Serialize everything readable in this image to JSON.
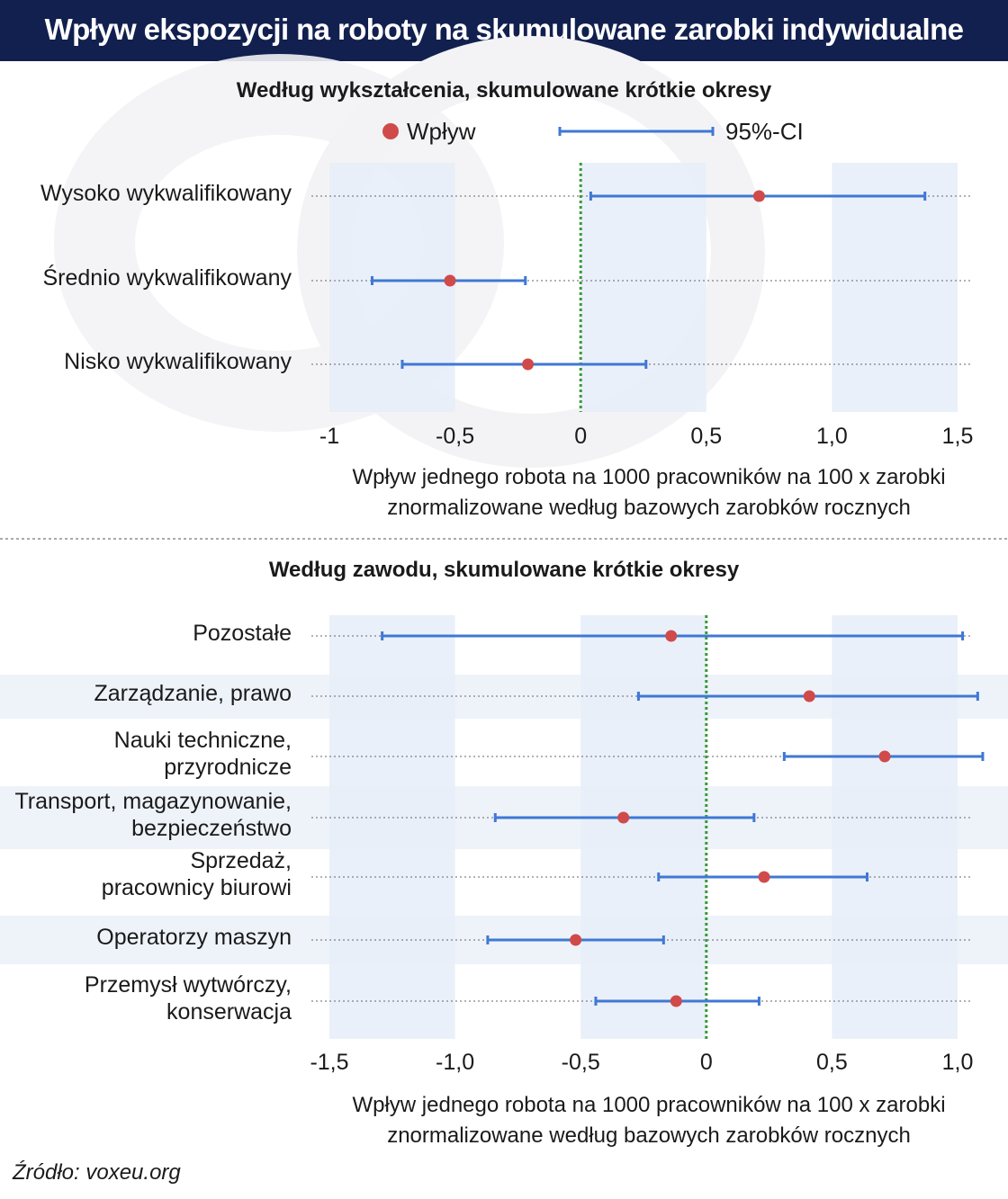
{
  "title": "Wpływ ekspozycji na roboty na skumulowane zarobki indywidualne",
  "source": "Źródło: voxeu.org",
  "colors": {
    "header": "#12204f",
    "point": "#d04a4a",
    "ci": "#3f78d4",
    "zero_line": "#3a9a3a",
    "band": "#e6edf8",
    "row_alt": "#eef3fa"
  },
  "legend": {
    "point_label": "Wpływ",
    "ci_label": "95%-CI"
  },
  "chart_data": [
    {
      "type": "scatter",
      "title": "Według wykształcenia, skumulowane krótkie okresy",
      "xlabel": [
        "Wpływ jednego robota na 1000 pracowników na 100 x zarobki",
        "znormalizowane według bazowych zarobków rocznych"
      ],
      "xlim": [
        -1,
        1.5
      ],
      "tick_values": [
        -1,
        -0.5,
        0,
        0.5,
        1.0,
        1.5
      ],
      "tick_labels": [
        "-1",
        "-0,5",
        "0",
        "0,5",
        "1,0",
        "1,5"
      ],
      "bands": [
        [
          -1,
          -0.5
        ],
        [
          0,
          0.5
        ],
        [
          1.0,
          1.5
        ]
      ],
      "reference_line": 0,
      "categories": [
        {
          "label": [
            "Wysoko wykwalifikowany"
          ],
          "value": 0.71,
          "ci_low": 0.04,
          "ci_high": 1.37
        },
        {
          "label": [
            "Średnio wykwalifikowany"
          ],
          "value": -0.52,
          "ci_low": -0.83,
          "ci_high": -0.22
        },
        {
          "label": [
            "Nisko wykwalifikowany"
          ],
          "value": -0.21,
          "ci_low": -0.71,
          "ci_high": 0.26
        }
      ]
    },
    {
      "type": "scatter",
      "title": "Według zawodu, skumulowane krótkie okresy",
      "xlabel": [
        "Wpływ jednego robota na 1000 pracowników na 100 x zarobki",
        "znormalizowane według bazowych zarobków rocznych"
      ],
      "xlim": [
        -1.5,
        1.0
      ],
      "tick_values": [
        -1.5,
        -1.0,
        -0.5,
        0,
        0.5,
        1.0
      ],
      "tick_labels": [
        "-1,5",
        "-1,0",
        "-0,5",
        "0",
        "0,5",
        "1,0"
      ],
      "bands": [
        [
          -1.5,
          -1.0
        ],
        [
          -0.5,
          0
        ],
        [
          0.5,
          1.0
        ]
      ],
      "reference_line": 0,
      "categories": [
        {
          "label": [
            "Pozostałe"
          ],
          "value": -0.14,
          "ci_low": -1.29,
          "ci_high": 1.02
        },
        {
          "label": [
            "Zarządzanie, prawo"
          ],
          "value": 0.41,
          "ci_low": -0.27,
          "ci_high": 1.08
        },
        {
          "label": [
            "Nauki techniczne,",
            "przyrodnicze"
          ],
          "value": 0.71,
          "ci_low": 0.31,
          "ci_high": 1.1
        },
        {
          "label": [
            "Transport, magazynowanie,",
            "bezpieczeństwo"
          ],
          "value": -0.33,
          "ci_low": -0.84,
          "ci_high": 0.19
        },
        {
          "label": [
            "Sprzedaż,",
            "pracownicy biurowi"
          ],
          "value": 0.23,
          "ci_low": -0.19,
          "ci_high": 0.64
        },
        {
          "label": [
            "Operatorzy maszyn"
          ],
          "value": -0.52,
          "ci_low": -0.87,
          "ci_high": -0.17
        },
        {
          "label": [
            "Przemysł wytwórczy,",
            "konserwacja"
          ],
          "value": -0.12,
          "ci_low": -0.44,
          "ci_high": 0.21
        }
      ]
    }
  ]
}
